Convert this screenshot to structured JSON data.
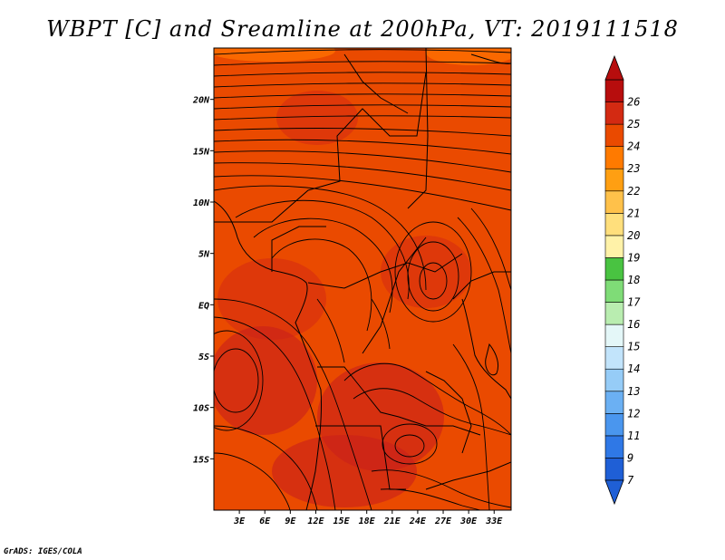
{
  "title": "WBPT [C] and Sreamline at 200hPa, VT: 2019111518",
  "credit": "GrADS: IGES/COLA",
  "map": {
    "lon_range": [
      0,
      35
    ],
    "lat_range": [
      -20,
      25
    ],
    "lat_ticks": [
      {
        "value": 20,
        "label": "20N"
      },
      {
        "value": 15,
        "label": "15N"
      },
      {
        "value": 10,
        "label": "10N"
      },
      {
        "value": 5,
        "label": "5N"
      },
      {
        "value": 0,
        "label": "EQ"
      },
      {
        "value": -5,
        "label": "5S"
      },
      {
        "value": -10,
        "label": "10S"
      },
      {
        "value": -15,
        "label": "15S"
      }
    ],
    "lon_ticks": [
      {
        "value": 3,
        "label": "3E"
      },
      {
        "value": 6,
        "label": "6E"
      },
      {
        "value": 9,
        "label": "9E"
      },
      {
        "value": 12,
        "label": "12E"
      },
      {
        "value": 15,
        "label": "15E"
      },
      {
        "value": 18,
        "label": "18E"
      },
      {
        "value": 21,
        "label": "21E"
      },
      {
        "value": 24,
        "label": "24E"
      },
      {
        "value": 27,
        "label": "27E"
      },
      {
        "value": 30,
        "label": "30E"
      },
      {
        "value": 33,
        "label": "33E"
      }
    ],
    "field_colors": {
      "base": "#ea4a00",
      "warm": "#d32a12",
      "hot": "#c8201a",
      "cool": "#ff7300"
    }
  },
  "colorbar": {
    "labels": [
      "7",
      "9",
      "11",
      "12",
      "13",
      "14",
      "15",
      "16",
      "17",
      "18",
      "19",
      "20",
      "21",
      "22",
      "23",
      "24",
      "25",
      "26"
    ],
    "colors": [
      "#1f5fd6",
      "#2f78e6",
      "#4a96ee",
      "#6bb0f3",
      "#96ccf7",
      "#c2e4fb",
      "#e4f7f8",
      "#b9edb0",
      "#7fdc77",
      "#49c341",
      "#fff2a8",
      "#ffdf7c",
      "#ffc14a",
      "#ff9f12",
      "#ff7a00",
      "#ea4a00",
      "#d32a12",
      "#b70d0d"
    ]
  }
}
